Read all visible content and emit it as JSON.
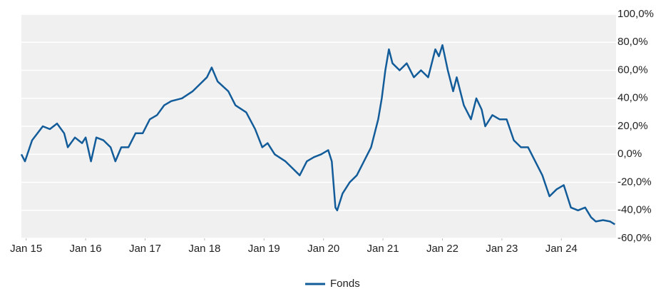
{
  "chart_data": {
    "type": "line",
    "x": [
      2014.92,
      2014.98,
      2015.1,
      2015.28,
      2015.4,
      2015.52,
      2015.64,
      2015.7,
      2015.82,
      2015.94,
      2016.0,
      2016.09,
      2016.18,
      2016.3,
      2016.42,
      2016.5,
      2016.6,
      2016.72,
      2016.84,
      2016.96,
      2017.08,
      2017.2,
      2017.32,
      2017.44,
      2017.62,
      2017.8,
      2017.92,
      2018.04,
      2018.12,
      2018.22,
      2018.4,
      2018.52,
      2018.7,
      2018.85,
      2018.97,
      2019.06,
      2019.18,
      2019.36,
      2019.48,
      2019.6,
      2019.72,
      2019.84,
      2019.96,
      2020.08,
      2020.14,
      2020.2,
      2020.23,
      2020.32,
      2020.44,
      2020.56,
      2020.68,
      2020.8,
      2020.92,
      2020.98,
      2021.04,
      2021.1,
      2021.16,
      2021.28,
      2021.4,
      2021.52,
      2021.64,
      2021.76,
      2021.88,
      2021.94,
      2022.0,
      2022.09,
      2022.18,
      2022.24,
      2022.36,
      2022.48,
      2022.57,
      2022.66,
      2022.72,
      2022.84,
      2022.96,
      2023.08,
      2023.2,
      2023.32,
      2023.44,
      2023.56,
      2023.68,
      2023.8,
      2023.92,
      2024.04,
      2024.16,
      2024.28,
      2024.4,
      2024.5,
      2024.58,
      2024.7,
      2024.82,
      2024.9
    ],
    "series": [
      {
        "name": "Fonds",
        "color": "#135c9a",
        "values": [
          0,
          -5,
          10,
          20,
          18,
          22,
          15,
          5,
          12,
          8,
          12,
          -5,
          12,
          10,
          5,
          -5,
          5,
          5,
          15,
          15,
          25,
          28,
          35,
          38,
          40,
          45,
          50,
          55,
          62,
          52,
          45,
          35,
          30,
          18,
          5,
          8,
          0,
          -5,
          -10,
          -15,
          -5,
          -2,
          0,
          3,
          -5,
          -38,
          -40,
          -28,
          -20,
          -15,
          -5,
          5,
          25,
          40,
          60,
          75,
          65,
          60,
          65,
          55,
          60,
          55,
          75,
          70,
          78,
          60,
          45,
          55,
          35,
          25,
          40,
          32,
          20,
          28,
          25,
          25,
          10,
          5,
          5,
          -5,
          -15,
          -30,
          -25,
          -22,
          -38,
          -40,
          -38,
          -45,
          -48,
          -47,
          -48,
          -50
        ]
      }
    ],
    "xlim": [
      2014.92,
      2024.92
    ],
    "xticks": [
      {
        "value": 2015,
        "label": "Jan 15"
      },
      {
        "value": 2016,
        "label": "Jan 16"
      },
      {
        "value": 2017,
        "label": "Jan 17"
      },
      {
        "value": 2018,
        "label": "Jan 18"
      },
      {
        "value": 2019,
        "label": "Jan 19"
      },
      {
        "value": 2020,
        "label": "Jan 20"
      },
      {
        "value": 2021,
        "label": "Jan 21"
      },
      {
        "value": 2022,
        "label": "Jan 22"
      },
      {
        "value": 2023,
        "label": "Jan 23"
      },
      {
        "value": 2024,
        "label": "Jan 24"
      }
    ],
    "ylim": [
      -60,
      100
    ],
    "yticks": [
      {
        "value": -60,
        "label": "-60,0%"
      },
      {
        "value": -40,
        "label": "-40,0%"
      },
      {
        "value": -20,
        "label": "-20,0%"
      },
      {
        "value": 0,
        "label": "0,0%"
      },
      {
        "value": 20,
        "label": "20,0%"
      },
      {
        "value": 40,
        "label": "40,0%"
      },
      {
        "value": 60,
        "label": "60,0%"
      },
      {
        "value": 80,
        "label": "80,0%"
      },
      {
        "value": 100,
        "label": "100,0%"
      }
    ],
    "grid": true,
    "legend": "bottom"
  }
}
